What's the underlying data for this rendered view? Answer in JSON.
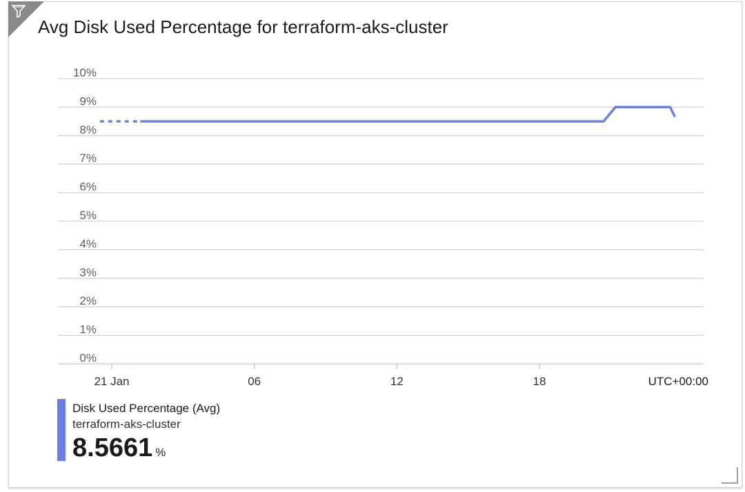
{
  "tile": {
    "title": "Avg Disk Used Percentage for terraform-aks-cluster",
    "filter_icon": "filter-icon",
    "resize_icon": "resize-handle-icon"
  },
  "legend": {
    "metric": "Disk Used Percentage (Avg)",
    "resource": "terraform-aks-cluster",
    "value": "8.5661",
    "unit": "%"
  },
  "chart_data": {
    "type": "line",
    "title": "Avg Disk Used Percentage for terraform-aks-cluster",
    "xlabel": "",
    "ylabel": "",
    "timezone_label": "UTC+00:00",
    "y_ticks": [
      "0%",
      "1%",
      "2%",
      "3%",
      "4%",
      "5%",
      "6%",
      "7%",
      "8%",
      "9%",
      "10%"
    ],
    "ylim": [
      0,
      10
    ],
    "x_ticks": [
      {
        "label": "21 Jan",
        "hour": 0
      },
      {
        "label": "06",
        "hour": 6
      },
      {
        "label": "12",
        "hour": 12
      },
      {
        "label": "18",
        "hour": 18
      }
    ],
    "xlim_hours": [
      -1.5,
      24.5
    ],
    "grid": true,
    "series": [
      {
        "name": "Disk Used Percentage (Avg)",
        "color": "#6b7ee3",
        "dashed_segment": [
          {
            "hour": -0.5,
            "value": 8.5
          },
          {
            "hour": 1.2,
            "value": 8.5
          }
        ],
        "points": [
          {
            "hour": 1.2,
            "value": 8.5
          },
          {
            "hour": 20.7,
            "value": 8.5
          },
          {
            "hour": 21.2,
            "value": 9.0
          },
          {
            "hour": 23.5,
            "value": 9.0
          },
          {
            "hour": 23.7,
            "value": 8.66
          }
        ]
      }
    ]
  }
}
